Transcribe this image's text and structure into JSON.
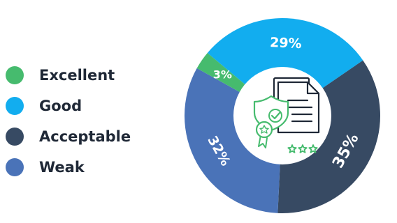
{
  "chart_data": {
    "type": "pie",
    "variant": "donut",
    "slices": [
      {
        "label": "Good",
        "value": 29,
        "value_label": "29%",
        "color": "#12ADEF"
      },
      {
        "label": "Acceptable",
        "value": 35,
        "value_label": "35%",
        "color": "#374A63"
      },
      {
        "label": "Weak",
        "value": 32,
        "value_label": "32%",
        "color": "#4A73B8"
      },
      {
        "label": "Excellent",
        "value": 3,
        "value_label": "3%",
        "color": "#46BB6E"
      }
    ],
    "legend_position": "left"
  },
  "legend": [
    {
      "label": "Excellent",
      "color": "#46BB6E"
    },
    {
      "label": "Good",
      "color": "#12ADEF"
    },
    {
      "label": "Acceptable",
      "color": "#374A63"
    },
    {
      "label": "Weak",
      "color": "#4A73B8"
    }
  ],
  "center_icon": {
    "name": "certified-document-icon",
    "accent": "#46BB6E",
    "ink": "#1f2836"
  }
}
